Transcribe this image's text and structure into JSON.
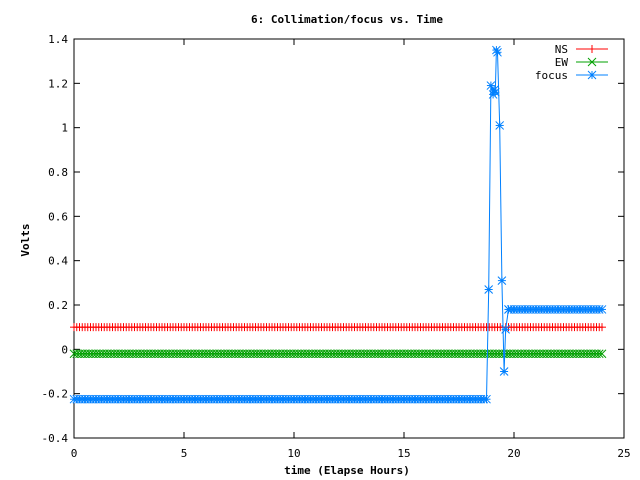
{
  "chart_data": {
    "type": "line",
    "title": "6: Collimation/focus vs. Time",
    "xlabel": "time (Elapse Hours)",
    "ylabel": "Volts",
    "xlim": [
      0,
      25
    ],
    "ylim": [
      -0.4,
      1.4
    ],
    "x_ticks": [
      0,
      5,
      10,
      15,
      20,
      25
    ],
    "y_ticks": [
      -0.4,
      -0.2,
      0,
      0.2,
      0.4,
      0.6,
      0.8,
      1,
      1.2,
      1.4
    ],
    "x_tick_labels": [
      "0",
      "5",
      "10",
      "15",
      "20",
      "25"
    ],
    "y_tick_labels": [
      "-0.4",
      "-0.2",
      "0",
      "0.2",
      "0.4",
      "0.6",
      "0.8",
      "1",
      "1.2",
      "1.4"
    ],
    "grid": false,
    "legend_position": "top-right",
    "series": [
      {
        "name": "NS",
        "color": "#ff0000",
        "marker": "plus",
        "sampling": {
          "x_start": 0,
          "x_end": 24,
          "step": 0.125,
          "value": 0.1
        }
      },
      {
        "name": "EW",
        "color": "#00a000",
        "marker": "cross",
        "sampling": {
          "x_start": 0,
          "x_end": 24,
          "step": 0.125,
          "value": -0.02
        }
      },
      {
        "name": "focus",
        "color": "#0080ff",
        "marker": "star",
        "sampling_before": {
          "x_start": 0,
          "x_end": 18.75,
          "step": 0.125,
          "value": -0.225
        },
        "points": [
          [
            18.85,
            0.27
          ],
          [
            18.95,
            1.19
          ],
          [
            19.05,
            1.15
          ],
          [
            19.1,
            1.17
          ],
          [
            19.15,
            1.16
          ],
          [
            19.2,
            1.35
          ],
          [
            19.25,
            1.34
          ],
          [
            19.35,
            1.01
          ],
          [
            19.45,
            0.31
          ],
          [
            19.55,
            -0.1
          ],
          [
            19.62,
            0.09
          ],
          [
            19.75,
            0.18
          ]
        ],
        "sampling_after": {
          "x_start": 19.75,
          "x_end": 24,
          "step": 0.125,
          "value": 0.18
        }
      }
    ]
  }
}
